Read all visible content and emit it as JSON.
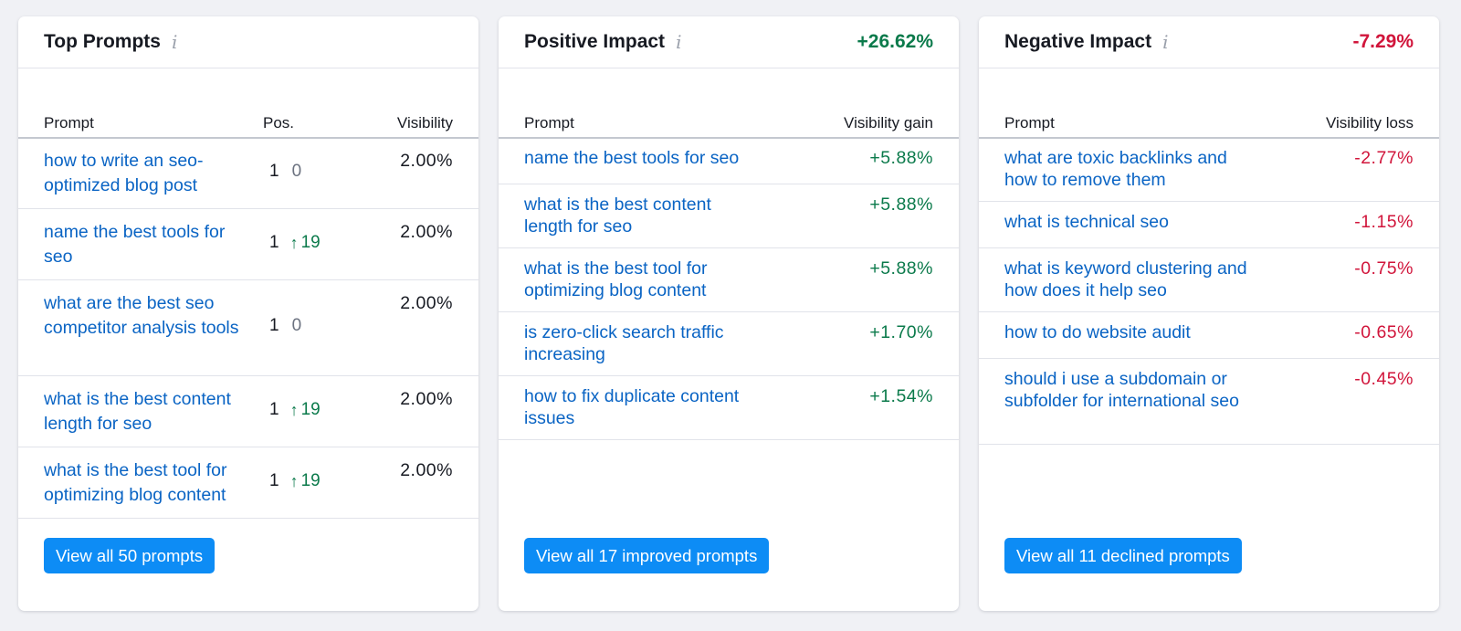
{
  "colors": {
    "positive": "#0b7a4b",
    "negative": "#d1153b",
    "link": "#0a64c4",
    "button": "#0d8cf5"
  },
  "top": {
    "title": "Top Prompts",
    "info_icon": "info-icon",
    "col_prompt": "Prompt",
    "col_pos": "Pos.",
    "col_visibility": "Visibility",
    "rows": [
      {
        "prompt": "how to write an seo-optimized blog post",
        "pos": "1",
        "delta": "0",
        "visibility": "2.00%"
      },
      {
        "prompt": "name the best tools for seo",
        "pos": "1",
        "delta": "19",
        "visibility": "2.00%"
      },
      {
        "prompt": "what are the best seo competitor analysis tools",
        "pos": "1",
        "delta": "0",
        "visibility": "2.00%"
      },
      {
        "prompt": "what is the best content length for seo",
        "pos": "1",
        "delta": "19",
        "visibility": "2.00%"
      },
      {
        "prompt": "what is the best tool for optimizing blog content",
        "pos": "1",
        "delta": "19",
        "visibility": "2.00%"
      }
    ],
    "button": "View all 50 prompts"
  },
  "positive": {
    "title": "Positive Impact",
    "total": "+26.62%",
    "col_prompt": "Prompt",
    "col_value": "Visibility gain",
    "rows": [
      {
        "prompt": "name the best tools for seo",
        "value": "+5.88%"
      },
      {
        "prompt": "what is the best content length for seo",
        "value": "+5.88%"
      },
      {
        "prompt": "what is the best tool for optimizing blog content",
        "value": "+5.88%"
      },
      {
        "prompt": "is zero-click search traffic increasing",
        "value": "+1.70%"
      },
      {
        "prompt": "how to fix duplicate content issues",
        "value": "+1.54%"
      }
    ],
    "button": "View all 17 improved prompts"
  },
  "negative": {
    "title": "Negative Impact",
    "total": "-7.29%",
    "col_prompt": "Prompt",
    "col_value": "Visibility loss",
    "rows": [
      {
        "prompt": "what are toxic backlinks and how to remove them",
        "value": "-2.77%"
      },
      {
        "prompt": "what is technical seo",
        "value": "-1.15%"
      },
      {
        "prompt": "what is keyword clustering and how does it help seo",
        "value": "-0.75%"
      },
      {
        "prompt": "how to do website audit",
        "value": "-0.65%"
      },
      {
        "prompt": "should i use a subdomain or subfolder for international seo",
        "value": "-0.45%"
      }
    ],
    "button": "View all 11 declined prompts"
  }
}
